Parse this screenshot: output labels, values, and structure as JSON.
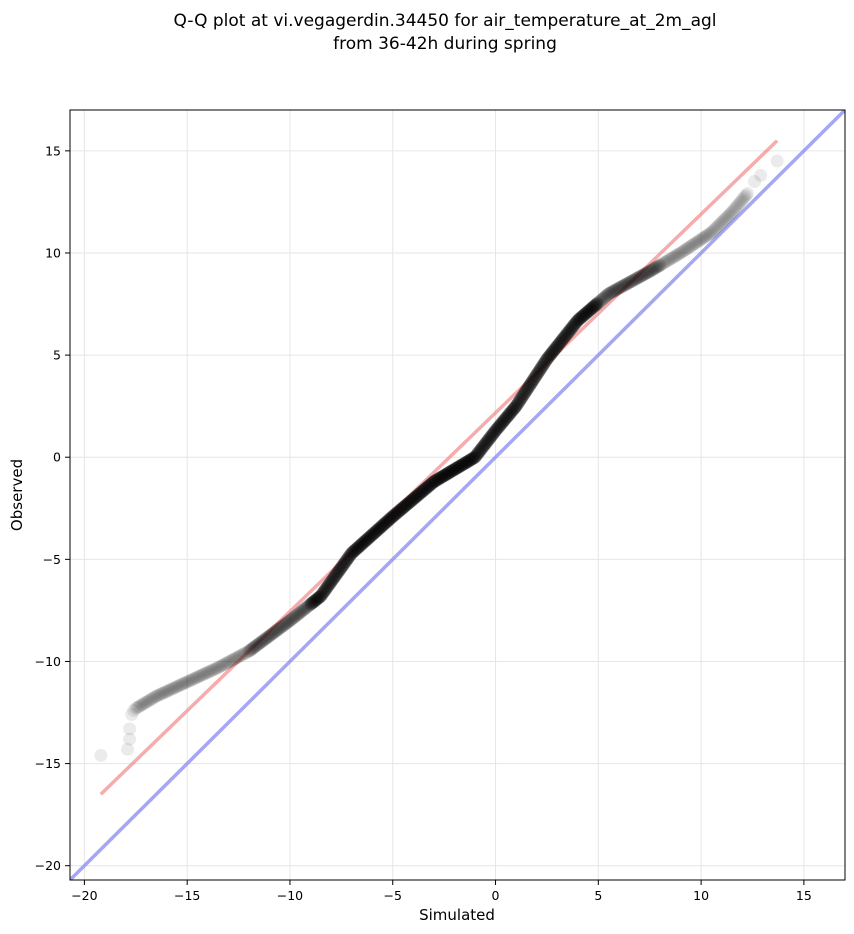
{
  "chart_data": {
    "type": "scatter",
    "title": "Q-Q plot at vi.vegagerdin.34450 for air_temperature_at_2m_agl",
    "subtitle": "from 36-42h during spring",
    "xlabel": "Simulated",
    "ylabel": "Observed",
    "xlim": [
      -20.7,
      17.0
    ],
    "ylim": [
      -20.7,
      17.0
    ],
    "xticks": [
      -20,
      -15,
      -10,
      -5,
      0,
      5,
      10,
      15
    ],
    "yticks": [
      -20,
      -15,
      -10,
      -5,
      0,
      5,
      10,
      15
    ],
    "xtick_labels": [
      "−20",
      "−15",
      "−10",
      "−5",
      "0",
      "5",
      "10",
      "15"
    ],
    "ytick_labels": [
      "−20",
      "−15",
      "−10",
      "−5",
      "0",
      "5",
      "10",
      "15"
    ],
    "grid": true,
    "legend": "none",
    "colors": {
      "points": "#000000",
      "fit_line": "#f08080",
      "identity_line": "#8080f0",
      "grid": "#e6e6e6"
    },
    "fit_line": {
      "x": [
        -19.2,
        13.7
      ],
      "y": [
        -16.5,
        15.5
      ]
    },
    "identity_line": {
      "x": [
        -20.7,
        17.0
      ],
      "y": [
        -20.7,
        17.0
      ]
    },
    "quantile_knots": {
      "x": [
        -19.2,
        -17.9,
        -17.8,
        -17.7,
        -17.5,
        -16.5,
        -15.0,
        -13.5,
        -12.0,
        -10.0,
        -8.5,
        -7.0,
        -5.0,
        -3.0,
        -1.0,
        0.0,
        1.0,
        2.5,
        4.0,
        5.5,
        7.5,
        9.0,
        10.5,
        11.5,
        12.5,
        13.7
      ],
      "y": [
        -14.6,
        -14.3,
        -13.5,
        -12.6,
        -12.3,
        -11.7,
        -11.0,
        -10.3,
        -9.5,
        -8.0,
        -6.8,
        -4.7,
        -2.9,
        -1.2,
        0.0,
        1.3,
        2.5,
        4.8,
        6.7,
        8.0,
        9.1,
        10.0,
        11.0,
        12.0,
        13.2,
        14.5
      ]
    }
  }
}
